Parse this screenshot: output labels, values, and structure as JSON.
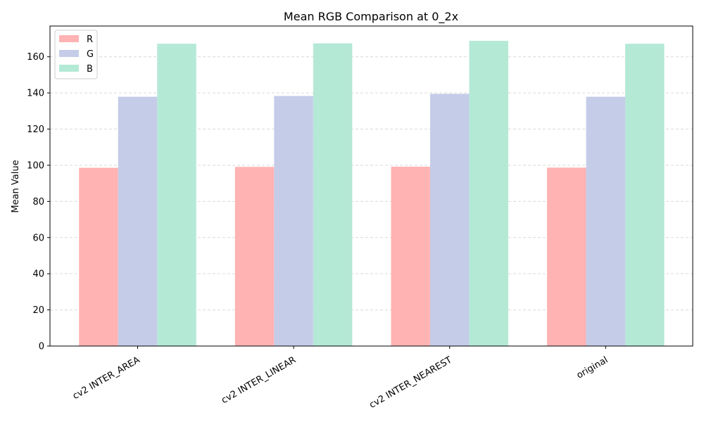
{
  "chart_data": {
    "type": "bar",
    "title": "Mean RGB Comparison at 0_2x",
    "xlabel": "",
    "ylabel": "Mean Value",
    "categories": [
      "cv2 INTER_AREA",
      "cv2 INTER_LINEAR",
      "cv2 INTER_NEAREST",
      "original"
    ],
    "series": [
      {
        "name": "R",
        "color": "#ffb3b3",
        "values": [
          98.6,
          99.1,
          99.2,
          98.7
        ]
      },
      {
        "name": "G",
        "color": "#c5cce8",
        "values": [
          137.9,
          138.3,
          139.5,
          137.9
        ]
      },
      {
        "name": "B",
        "color": "#b4e9d6",
        "values": [
          167.2,
          167.4,
          168.8,
          167.2
        ]
      }
    ],
    "yticks": [
      0,
      20,
      40,
      60,
      80,
      100,
      120,
      140,
      160
    ],
    "ylim": [
      0,
      177
    ],
    "grid": "y-dashed",
    "legend_position": "top-left"
  }
}
